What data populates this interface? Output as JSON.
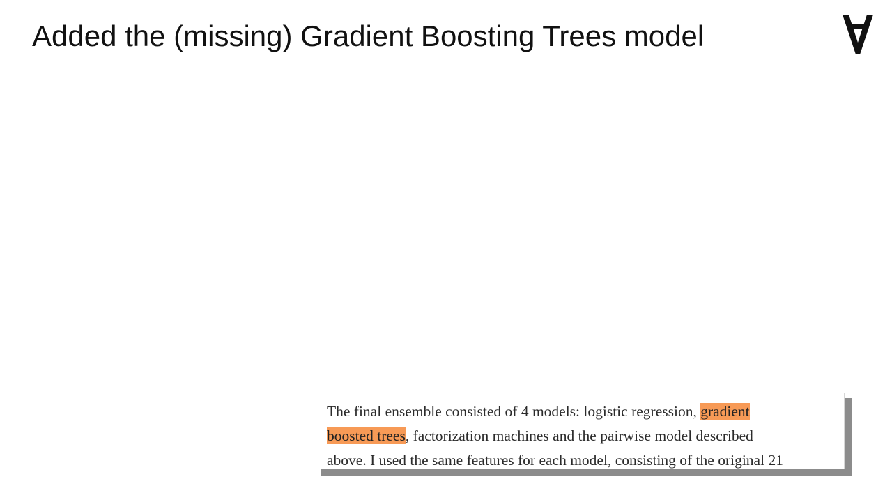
{
  "slide": {
    "title": "Added the (missing) Gradient Boosting Trees model"
  },
  "logo": {
    "icon": "inverted-a-logo-icon",
    "color": "#111111"
  },
  "excerpt": {
    "highlight_color": "#f79a56",
    "line1_text": "The final ensemble consisted of 4 models: logistic regression, ",
    "line1_highlight": "gradient",
    "line2_highlight": "boosted trees",
    "line2_text": ", factorization machines and the pairwise model described",
    "line3_text": "above. I used the same features for each model, consisting of the original 21"
  }
}
